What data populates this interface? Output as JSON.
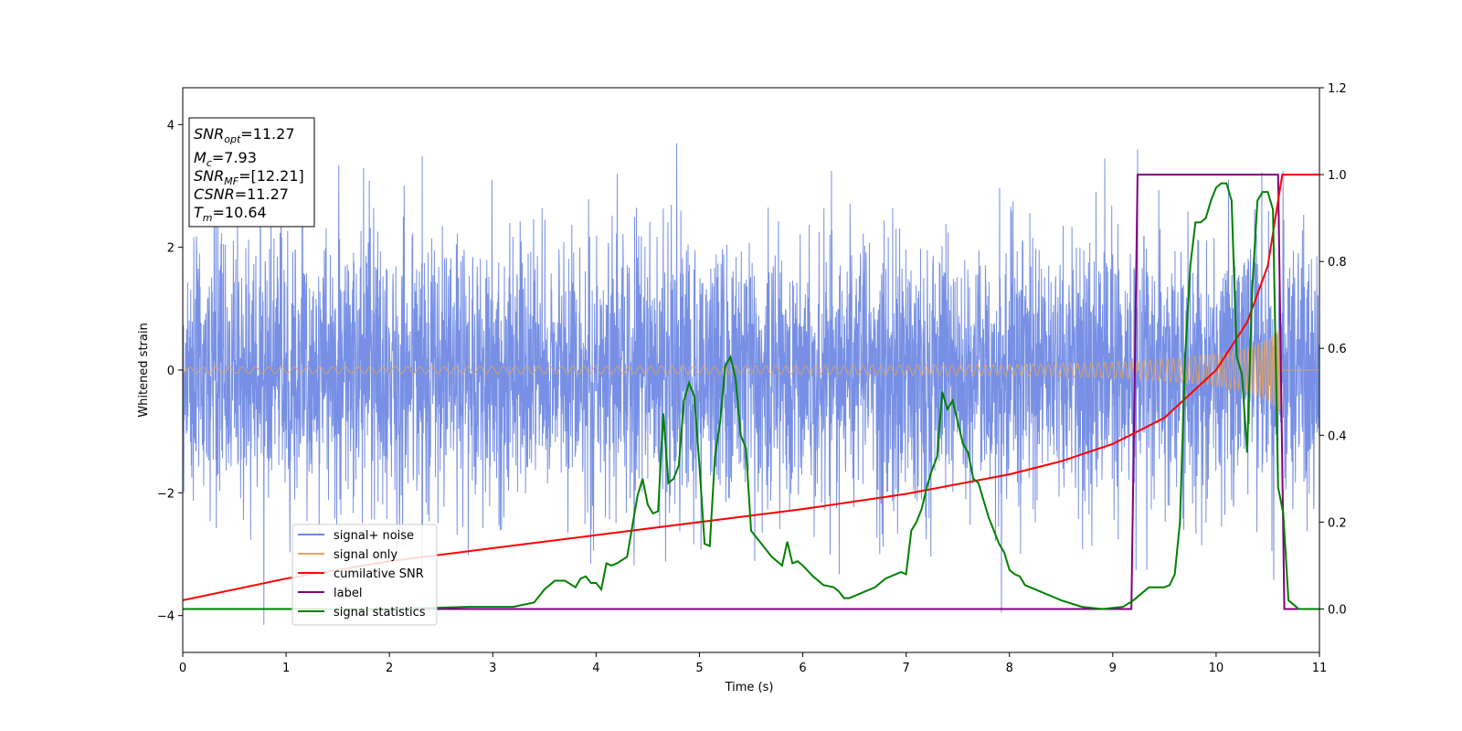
{
  "chart_data": {
    "type": "line",
    "xlabel": "Time (s)",
    "ylabel": "Whitened strain",
    "xlim": [
      0,
      11
    ],
    "ylim": [
      -4.6,
      4.6
    ],
    "y2lim": [
      -0.1,
      1.2
    ],
    "grid": false,
    "legend_position": "lower-left",
    "xticks": [
      "0",
      "1",
      "2",
      "3",
      "4",
      "5",
      "6",
      "7",
      "8",
      "9",
      "10",
      "11"
    ],
    "yticks": [
      "4",
      "2",
      "0",
      "−2",
      "−4"
    ],
    "y2ticks": [
      "1.2",
      "1.0",
      "0.8",
      "0.6",
      "0.4",
      "0.2",
      "0.0"
    ],
    "annotation": {
      "lines": [
        {
          "sym": "SNR",
          "sub": "opt",
          "val": "=11.27"
        },
        {
          "sym": "M",
          "sub": "c",
          "val": "=7.93"
        },
        {
          "sym": "SNR",
          "sub": "MF",
          "val": "=[12.21]"
        },
        {
          "sym": "CSNR",
          "sub": "",
          "val": "=11.27"
        },
        {
          "sym": "T",
          "sub": "m",
          "val": "=10.64"
        }
      ]
    },
    "series": [
      {
        "name": "signal+ noise",
        "color": "#6b87e3",
        "axis": "left",
        "note": "approx. gaussian noise, std ~1.1, range about -4.1 to 4.2"
      },
      {
        "name": "signal only",
        "color": "#e8a35c",
        "axis": "left",
        "envelope_t": [
          0,
          6,
          8,
          9,
          9.5,
          10,
          10.3,
          10.5,
          10.62,
          10.64,
          11
        ],
        "envelope_a": [
          0.05,
          0.07,
          0.09,
          0.13,
          0.18,
          0.26,
          0.36,
          0.5,
          0.7,
          0,
          0
        ]
      },
      {
        "name": "cumilative SNR",
        "color": "#ff0000",
        "axis": "right",
        "x": [
          0,
          1,
          2,
          3,
          4,
          5,
          6,
          7,
          8,
          8.5,
          9,
          9.5,
          10,
          10.3,
          10.5,
          10.64,
          11
        ],
        "y": [
          0.02,
          0.07,
          0.11,
          0.14,
          0.17,
          0.2,
          0.23,
          0.265,
          0.31,
          0.34,
          0.38,
          0.44,
          0.55,
          0.66,
          0.79,
          1.0,
          1.0
        ]
      },
      {
        "name": "label",
        "color": "#800080",
        "axis": "right",
        "x": [
          0,
          9.18,
          9.24,
          10.6,
          10.66,
          11
        ],
        "y": [
          0,
          0,
          1,
          1,
          0,
          0
        ]
      },
      {
        "name": "signal statistics",
        "color": "#008000",
        "axis": "right",
        "x": [
          0,
          1,
          2,
          2.8,
          3.2,
          3.4,
          3.5,
          3.6,
          3.7,
          3.8,
          3.85,
          3.9,
          3.95,
          4.0,
          4.05,
          4.1,
          4.15,
          4.2,
          4.3,
          4.4,
          4.45,
          4.5,
          4.55,
          4.6,
          4.65,
          4.7,
          4.75,
          4.8,
          4.85,
          4.9,
          4.95,
          5.0,
          5.05,
          5.1,
          5.15,
          5.2,
          5.25,
          5.3,
          5.35,
          5.4,
          5.45,
          5.5,
          5.6,
          5.7,
          5.8,
          5.85,
          5.9,
          5.95,
          6.0,
          6.1,
          6.2,
          6.3,
          6.35,
          6.4,
          6.45,
          6.5,
          6.6,
          6.7,
          6.8,
          6.9,
          6.95,
          7.0,
          7.05,
          7.1,
          7.15,
          7.2,
          7.25,
          7.3,
          7.35,
          7.4,
          7.45,
          7.5,
          7.55,
          7.6,
          7.65,
          7.7,
          7.75,
          7.8,
          7.85,
          7.9,
          7.95,
          8.0,
          8.05,
          8.1,
          8.15,
          8.3,
          8.5,
          8.7,
          8.9,
          9.1,
          9.2,
          9.3,
          9.35,
          9.4,
          9.45,
          9.5,
          9.55,
          9.6,
          9.65,
          9.7,
          9.75,
          9.8,
          9.85,
          9.9,
          9.95,
          10.0,
          10.05,
          10.1,
          10.15,
          10.2,
          10.25,
          10.3,
          10.35,
          10.4,
          10.45,
          10.5,
          10.55,
          10.6,
          10.65,
          10.7,
          10.8,
          11
        ],
        "y": [
          0.0,
          0.0,
          0.0,
          0.005,
          0.005,
          0.015,
          0.045,
          0.065,
          0.065,
          0.05,
          0.07,
          0.075,
          0.06,
          0.06,
          0.045,
          0.105,
          0.1,
          0.105,
          0.12,
          0.26,
          0.3,
          0.24,
          0.22,
          0.225,
          0.45,
          0.29,
          0.3,
          0.33,
          0.48,
          0.52,
          0.49,
          0.33,
          0.15,
          0.145,
          0.35,
          0.43,
          0.56,
          0.58,
          0.53,
          0.4,
          0.37,
          0.18,
          0.15,
          0.12,
          0.1,
          0.155,
          0.105,
          0.11,
          0.1,
          0.075,
          0.055,
          0.05,
          0.04,
          0.025,
          0.025,
          0.03,
          0.04,
          0.05,
          0.07,
          0.08,
          0.085,
          0.08,
          0.18,
          0.2,
          0.23,
          0.28,
          0.32,
          0.35,
          0.5,
          0.46,
          0.48,
          0.43,
          0.38,
          0.36,
          0.3,
          0.29,
          0.25,
          0.21,
          0.18,
          0.15,
          0.13,
          0.09,
          0.08,
          0.075,
          0.055,
          0.04,
          0.02,
          0.005,
          0.0,
          0.005,
          0.02,
          0.04,
          0.05,
          0.05,
          0.05,
          0.05,
          0.055,
          0.08,
          0.2,
          0.58,
          0.79,
          0.89,
          0.89,
          0.9,
          0.94,
          0.97,
          0.98,
          0.98,
          0.94,
          0.58,
          0.54,
          0.36,
          0.74,
          0.94,
          0.96,
          0.96,
          0.92,
          0.28,
          0.22,
          0.02,
          0.0,
          0.0
        ]
      }
    ]
  }
}
